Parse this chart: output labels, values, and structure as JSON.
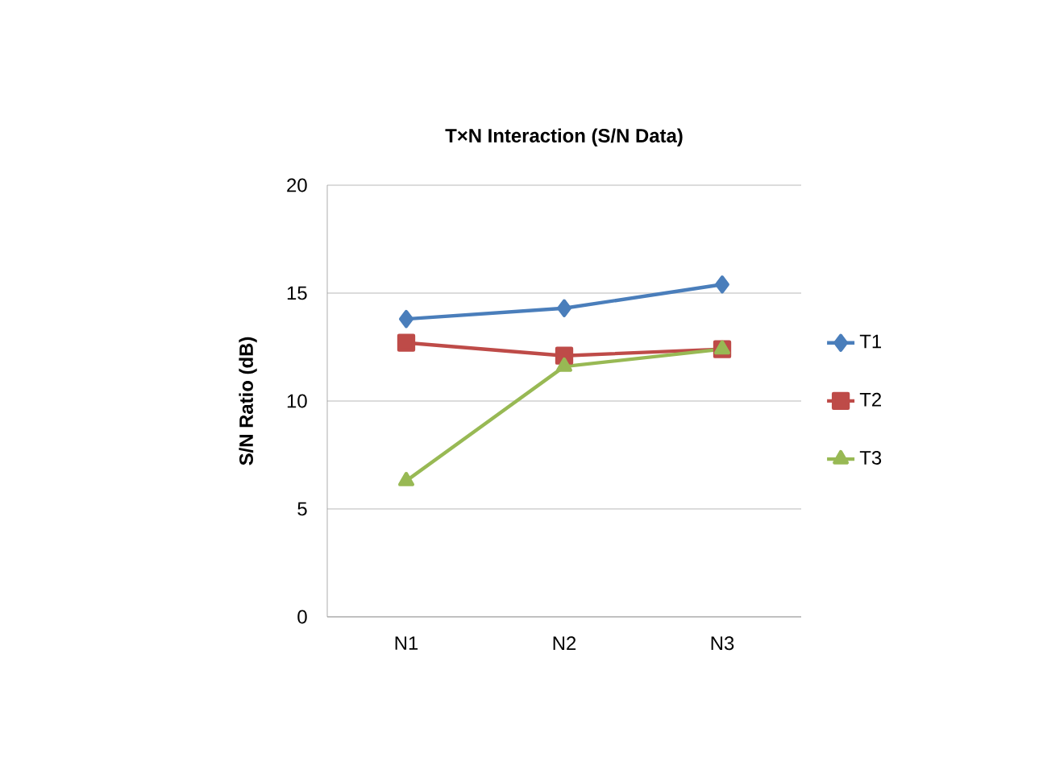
{
  "chart_data": {
    "type": "line",
    "title": "T×N Interaction (S/N Data)",
    "ylabel": "S/N Ratio (dB)",
    "categories": [
      "N1",
      "N2",
      "N3"
    ],
    "series": [
      {
        "name": "T1",
        "color": "#4a7ebb",
        "marker": "diamond",
        "values": [
          13.8,
          14.3,
          15.4
        ]
      },
      {
        "name": "T2",
        "color": "#be4b48",
        "marker": "square",
        "values": [
          12.7,
          12.1,
          12.4
        ]
      },
      {
        "name": "T3",
        "color": "#98b954",
        "marker": "triangle",
        "values": [
          6.3,
          11.6,
          12.4
        ]
      }
    ],
    "ylim": [
      0,
      20
    ],
    "yticks": [
      0,
      5,
      10,
      15,
      20
    ],
    "grid": "y",
    "legend": "right",
    "line_style": "solid"
  }
}
